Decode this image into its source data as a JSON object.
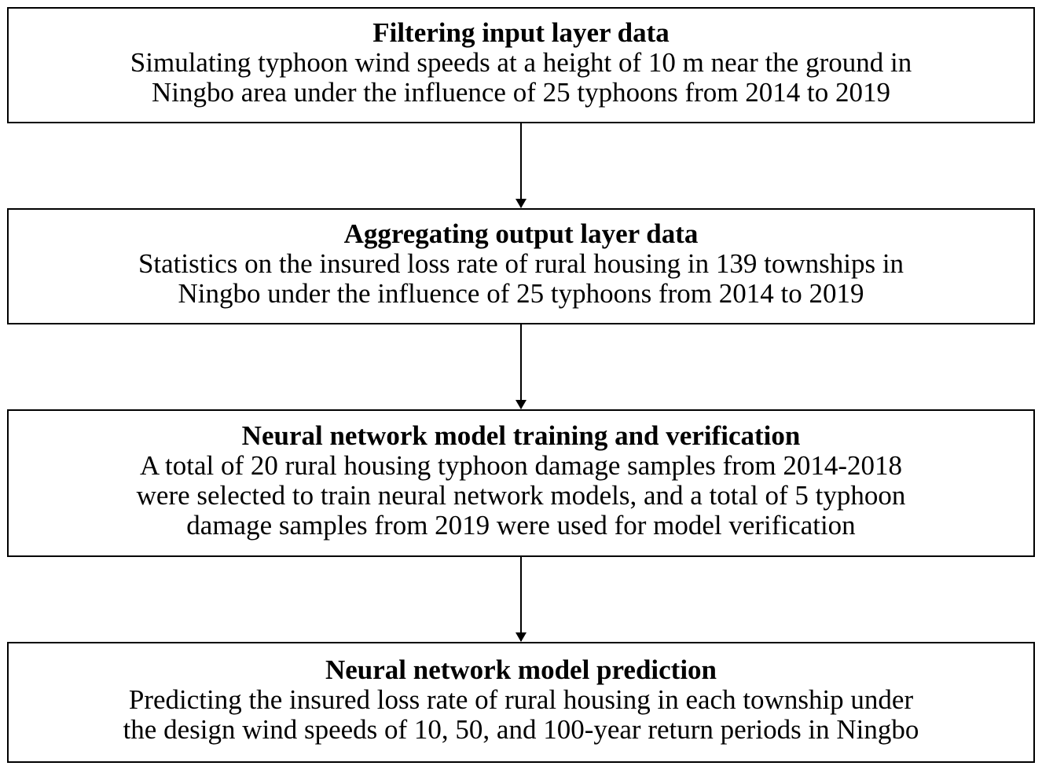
{
  "nodes": [
    {
      "title": "Filtering input layer data",
      "lines": [
        "Simulating typhoon wind speeds at a height of 10 m near the ground in",
        "Ningbo area under the influence of 25 typhoons from 2014 to 2019"
      ]
    },
    {
      "title": "Aggregating output layer data",
      "lines": [
        "Statistics on the insured loss rate of rural housing in 139 townships in",
        "Ningbo under the influence of 25 typhoons from 2014 to 2019"
      ]
    },
    {
      "title": "Neural network model training and verification",
      "lines": [
        "A total of 20 rural housing typhoon damage samples from 2014-2018",
        "were selected to train neural network models, and a total of 5 typhoon",
        "damage samples from 2019 were used for model verification"
      ]
    },
    {
      "title": "Neural network model prediction",
      "lines": [
        "Predicting the insured loss rate of rural housing in each township under",
        "the design wind speeds of 10, 50, and 100-year return periods in Ningbo"
      ]
    }
  ]
}
